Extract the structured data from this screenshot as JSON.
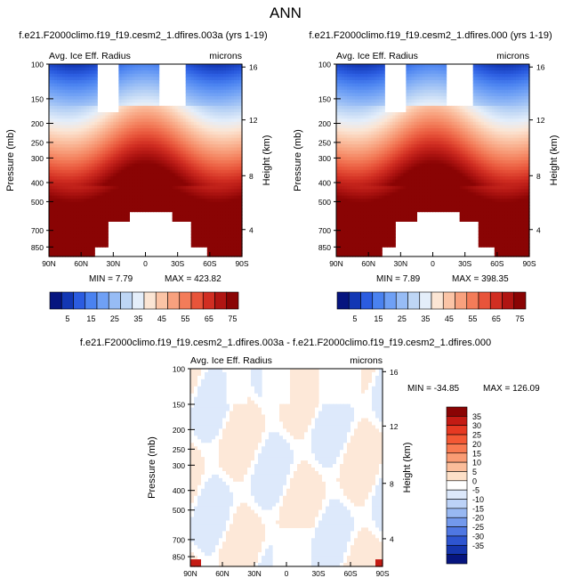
{
  "page": {
    "title": "ANN"
  },
  "chart_data": [
    {
      "type": "heatmap",
      "title": "f.e21.F2000climo.f19_f19.cesm2_1.dfires.003a (yrs 1-19)",
      "left_label": "Avg. Ice Eff. Radius",
      "right_label": "microns",
      "ylabel": "Pressure (mb)",
      "ylabel_right": "Height (km)",
      "x_tick_labels": [
        "90N",
        "60N",
        "30N",
        "0",
        "30S",
        "60S",
        "90S"
      ],
      "y_tick_labels": [
        "100",
        "150",
        "200",
        "250",
        "300",
        "400",
        "500",
        "700",
        "850"
      ],
      "y_tick_values": [
        100,
        150,
        200,
        250,
        300,
        400,
        500,
        700,
        850
      ],
      "height_tick_labels": [
        "16",
        "12",
        "8",
        "4"
      ],
      "ylim": [
        100,
        950
      ],
      "log_pressure_axis": true,
      "min_label": "MIN =  7.79",
      "max_label": "MAX = 423.82",
      "missing_top": [
        [
          -45,
          -25
        ],
        [
          13,
          37
        ]
      ],
      "missing_bottom": [
        -15,
        25
      ]
    },
    {
      "type": "heatmap",
      "title": "f.e21.F2000climo.f19_f19.cesm2_1.dfires.000 (yrs 1-19)",
      "left_label": "Avg. Ice Eff. Radius",
      "right_label": "microns",
      "ylabel": "Pressure (mb)",
      "ylabel_right": "Height (km)",
      "x_tick_labels": [
        "90N",
        "60N",
        "30N",
        "0",
        "30S",
        "60S",
        "90S"
      ],
      "y_tick_labels": [
        "100",
        "150",
        "200",
        "250",
        "300",
        "400",
        "500",
        "700",
        "850"
      ],
      "y_tick_values": [
        100,
        150,
        200,
        250,
        300,
        400,
        500,
        700,
        850
      ],
      "height_tick_labels": [
        "16",
        "12",
        "8",
        "4"
      ],
      "ylim": [
        100,
        950
      ],
      "log_pressure_axis": true,
      "min_label": "MIN =  7.89",
      "max_label": "MAX = 398.35",
      "missing_top": [
        [
          -45,
          -25
        ],
        [
          13,
          37
        ]
      ],
      "missing_bottom": [
        -15,
        25
      ]
    },
    {
      "type": "heatmap",
      "title": "f.e21.F2000climo.f19_f19.cesm2_1.dfires.003a - f.e21.F2000climo.f19_f19.cesm2_1.dfires.000",
      "left_label": "Avg. Ice Eff. Radius",
      "right_label": "microns",
      "ylabel": "Pressure (mb)",
      "ylabel_right": "Height (km)",
      "x_tick_labels": [
        "90N",
        "60N",
        "30N",
        "0",
        "30S",
        "60S",
        "90S"
      ],
      "y_tick_labels": [
        "100",
        "150",
        "200",
        "250",
        "300",
        "400",
        "500",
        "700",
        "850"
      ],
      "y_tick_values": [
        100,
        150,
        200,
        250,
        300,
        400,
        500,
        700,
        850
      ],
      "height_tick_labels": [
        "16",
        "12",
        "8",
        "4"
      ],
      "ylim": [
        100,
        950
      ],
      "log_pressure_axis": true,
      "min_label": "MIN = -34.85",
      "max_label": "MAX = 126.09"
    }
  ],
  "colorbars": {
    "absolute": {
      "orientation": "horizontal",
      "labels": [
        "5",
        "15",
        "25",
        "35",
        "45",
        "55",
        "65",
        "75"
      ],
      "colors": [
        "#06157f",
        "#1237b4",
        "#2b5ce0",
        "#4a82f0",
        "#6fa0f5",
        "#97bcf5",
        "#bed6f5",
        "#e4eefa",
        "#fbe5d4",
        "#fbc4a6",
        "#f8a17e",
        "#f37c59",
        "#e8543a",
        "#d12e22",
        "#b01512",
        "#8a0404"
      ]
    },
    "difference": {
      "orientation": "vertical",
      "labels": [
        "35",
        "30",
        "25",
        "20",
        "15",
        "10",
        "5",
        "0",
        "-5",
        "-10",
        "-15",
        "-20",
        "-25",
        "-30",
        "-35"
      ],
      "colors": [
        "#8a0404",
        "#c41b14",
        "#e63922",
        "#f35834",
        "#f87a51",
        "#fa9c74",
        "#fbbd9a",
        "#fde0c8",
        "#ffffff",
        "#dce8fb",
        "#bcd2f7",
        "#98b8f2",
        "#7399ec",
        "#4f77e2",
        "#2e55d0",
        "#1535ad",
        "#06157f"
      ]
    }
  }
}
